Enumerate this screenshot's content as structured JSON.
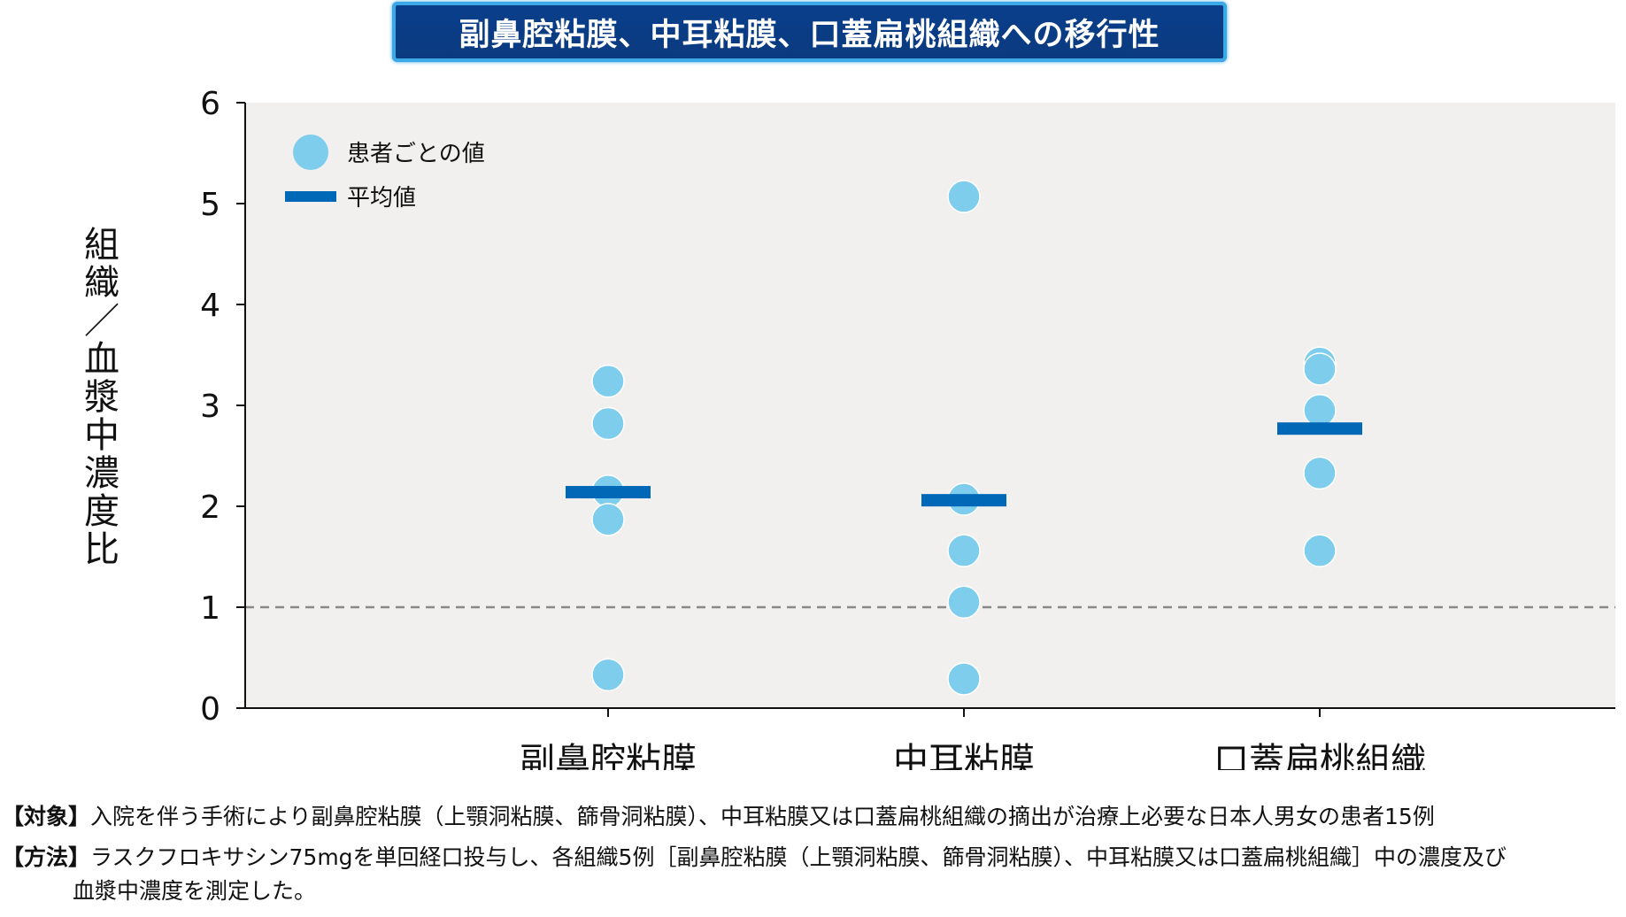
{
  "chart_data": {
    "type": "scatter",
    "title": "副鼻腔粘膜、中耳粘膜、口蓋扁桃組織への移行性",
    "ylabel": "組織／血漿中濃度比",
    "ylim": [
      0,
      6
    ],
    "yticks": [
      "0",
      "1",
      "2",
      "3",
      "4",
      "5",
      "6"
    ],
    "categories": [
      "副鼻腔粘膜",
      "中耳粘膜",
      "口蓋扁桃組織"
    ],
    "series": [
      {
        "name": "患者ごとの値",
        "values": [
          [
            3.24,
            2.82,
            2.15,
            1.87,
            0.33
          ],
          [
            5.07,
            2.07,
            1.56,
            1.05,
            0.29
          ],
          [
            3.42,
            3.36,
            2.95,
            2.33,
            1.56
          ]
        ]
      },
      {
        "name": "平均値",
        "values": [
          2.14,
          2.06,
          2.77
        ]
      }
    ],
    "reference_line": 1,
    "colors": {
      "point": "#7ecdec",
      "mean": "#0068b7",
      "plot_bg": "#f1f0ef",
      "refline": "#888888"
    }
  },
  "footnotes": {
    "target_label": "【対象】",
    "target_text": "入院を伴う手術により副鼻腔粘膜（上顎洞粘膜、篩骨洞粘膜）、中耳粘膜又は口蓋扁桃組織の摘出が治療上必要な日本人男女の患者15例",
    "method_label": "【方法】",
    "method_text": "ラスクフロキサシン75mgを単回経口投与し、各組織5例［副鼻腔粘膜（上顎洞粘膜、篩骨洞粘膜）、中耳粘膜又は口蓋扁桃組織］中の濃度及び",
    "method_text_2": "血漿中濃度を測定した。"
  }
}
